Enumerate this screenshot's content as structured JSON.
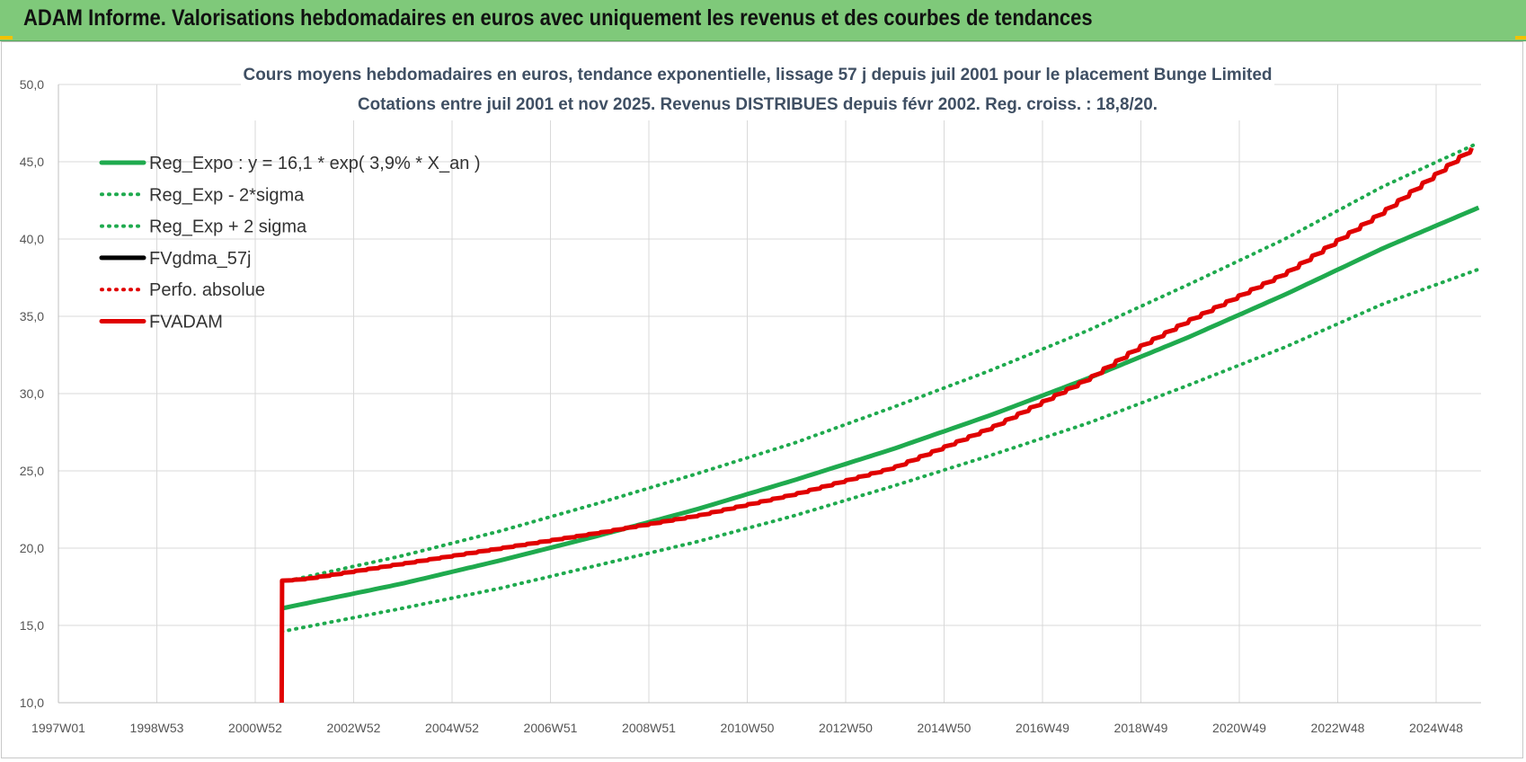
{
  "header": {
    "title": "ADAM Informe. Valorisations hebdomadaires en euros avec uniquement les revenus et des courbes de tendances",
    "background_color": "#7fc97a"
  },
  "chart_data": {
    "type": "line",
    "title_lines": [
      "Cours moyens hebdomadaires en euros, tendance exponentielle, lissage 57 j depuis juil 2001 pour le placement Bunge Limited",
      "Cotations entre juil 2001 et nov 2025. Revenus DISTRIBUES depuis févr 2002. Reg. croiss. : 18,8/20."
    ],
    "x_tick_labels": [
      "1997W01",
      "1998W53",
      "2000W52",
      "2002W52",
      "2004W52",
      "2006W51",
      "2008W51",
      "2010W50",
      "2012W50",
      "2014W50",
      "2016W49",
      "2018W49",
      "2020W49",
      "2022W48",
      "2024W48"
    ],
    "x_range_years": [
      1997.0,
      2026.0
    ],
    "ylim": [
      10,
      50
    ],
    "y_ticks": [
      10,
      15,
      20,
      25,
      30,
      35,
      40,
      45,
      50
    ],
    "y_tick_labels": [
      "10,0",
      "15,0",
      "20,0",
      "25,0",
      "30,0",
      "35,0",
      "40,0",
      "45,0",
      "50,0"
    ],
    "grid": true,
    "legend_position": "top-left",
    "series": [
      {
        "name": "Reg_Expo : y = 16,1 * exp( 3,9% *  X_an )",
        "color": "#1faa4e",
        "style": "solid",
        "x": [
          2001.55,
          2004.0,
          2006.0,
          2008.0,
          2010.0,
          2012.0,
          2014.0,
          2016.0,
          2018.0,
          2020.0,
          2022.0,
          2024.0,
          2026.0
        ],
        "y": [
          16.1,
          17.7,
          19.2,
          20.8,
          22.5,
          24.4,
          26.4,
          28.6,
          31.0,
          33.6,
          36.4,
          39.4,
          42.1
        ]
      },
      {
        "name": "Reg_Exp - 2*sigma",
        "color": "#1faa4e",
        "style": "dotted",
        "x": [
          2001.55,
          2004.0,
          2006.0,
          2008.0,
          2010.0,
          2012.0,
          2014.0,
          2016.0,
          2018.0,
          2020.0,
          2022.0,
          2024.0,
          2026.0
        ],
        "y": [
          14.6,
          16.1,
          17.4,
          18.9,
          20.4,
          22.1,
          24.0,
          26.0,
          28.1,
          30.5,
          33.0,
          35.8,
          38.1
        ]
      },
      {
        "name": "Reg_Exp + 2 sigma",
        "color": "#1faa4e",
        "style": "dotted",
        "x": [
          2001.55,
          2004.0,
          2006.0,
          2008.0,
          2010.0,
          2012.0,
          2014.0,
          2016.0,
          2018.0,
          2020.0,
          2022.0,
          2024.0,
          2026.0
        ],
        "y": [
          17.8,
          19.5,
          21.1,
          22.9,
          24.8,
          26.8,
          29.1,
          31.5,
          34.1,
          37.0,
          40.0,
          43.4,
          46.3
        ]
      },
      {
        "name": "FVgdma_57j",
        "color": "#000000",
        "style": "solid",
        "x": [],
        "y": []
      },
      {
        "name": "Perfo. absolue",
        "color": "#e00000",
        "style": "dotted",
        "x": [],
        "y": []
      },
      {
        "name": "FVADAM",
        "color": "#e00000",
        "style": "solid-thick",
        "x": [
          2001.55,
          2001.56,
          2002.0,
          2004.0,
          2006.0,
          2008.0,
          2010.0,
          2012.0,
          2014.0,
          2016.0,
          2018.0,
          2019.0,
          2020.0,
          2022.0,
          2024.0,
          2025.9
        ],
        "y": [
          10.0,
          17.9,
          18.0,
          19.0,
          20.0,
          21.0,
          22.1,
          23.5,
          25.2,
          27.8,
          31.0,
          33.0,
          34.7,
          37.8,
          41.8,
          46.1
        ]
      }
    ]
  }
}
